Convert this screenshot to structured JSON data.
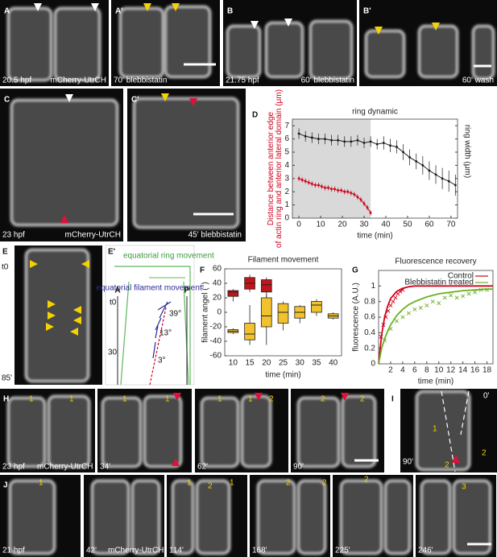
{
  "panels": {
    "A": {
      "label": "A",
      "time": "20.5 hpf",
      "marker": "mCherry-UtrCH"
    },
    "A2": {
      "label": "A'",
      "time": "70' blebbistatin"
    },
    "B": {
      "label": "B",
      "time": "21.75 hpf",
      "condition": "60' blebbistatin"
    },
    "B2": {
      "label": "B'",
      "condition": "60' wash"
    },
    "C": {
      "label": "C",
      "time": "23 hpf",
      "marker": "mCherry-UtrCH"
    },
    "C2": {
      "label": "C'",
      "time": "45' blebbistatin"
    },
    "D": {
      "label": "D"
    },
    "E": {
      "label": "E",
      "start": "t0",
      "end": "85'"
    },
    "E2": {
      "label": "E'",
      "title1": "equatorial ring movement",
      "title2": "equatorial filament movement",
      "anterior": "A",
      "posterior": "P",
      "start": "t0",
      "mid": "30'",
      "angles": [
        "39°",
        "13°",
        "3°"
      ]
    },
    "F": {
      "label": "F"
    },
    "G": {
      "label": "G"
    },
    "H": {
      "label": "H",
      "frames": [
        {
          "time": "23 hpf",
          "marker": "mCherry-UtrCH",
          "rings": [
            "1",
            "1"
          ]
        },
        {
          "time": "34'",
          "rings": [
            "1",
            "1"
          ]
        },
        {
          "time": "62'",
          "rings": [
            "1",
            "1",
            "2"
          ]
        },
        {
          "time": "90'",
          "rings": [
            "2",
            "2"
          ]
        }
      ]
    },
    "I": {
      "label": "I",
      "start": "0'",
      "end": "90'",
      "rings": [
        "1",
        "2",
        "2"
      ]
    },
    "J": {
      "label": "J",
      "frames": [
        {
          "time": "21 hpf",
          "rings": [
            "1"
          ]
        },
        {
          "time": "42'",
          "marker": "mCherry-UtrCH"
        },
        {
          "time": "114'",
          "rings": [
            "1",
            "2",
            "1"
          ]
        },
        {
          "time": "168'",
          "rings": [
            "2",
            "2"
          ]
        },
        {
          "time": "225'",
          "rings": [
            "2"
          ]
        },
        {
          "time": "246'",
          "rings": [
            "3"
          ]
        }
      ]
    }
  },
  "chart_data": [
    {
      "type": "line",
      "title": "ring dynamic",
      "x_label": "time (min)",
      "y_label": "Distance between anterior edge of actin ring and anterior lateral domain (μm)",
      "y_label_color": "#d0021b",
      "y2_label": "ring width (μm)",
      "xlim": [
        -3,
        73
      ],
      "xticks": [
        0,
        10,
        20,
        30,
        40,
        50,
        60,
        70
      ],
      "ylim": [
        0,
        7.5
      ],
      "yticks": [
        0,
        1,
        2,
        3,
        4,
        5,
        6,
        7
      ],
      "shaded_xlim": [
        -3,
        33
      ],
      "shade_color": "#d9d9d9",
      "series": [
        {
          "color": "#1a1a1a",
          "x": [
            0,
            3,
            6,
            9,
            12,
            15,
            18,
            21,
            24,
            27,
            30,
            33,
            36,
            39,
            42,
            45,
            48,
            51,
            54,
            57,
            60,
            63,
            66,
            69,
            72
          ],
          "values": [
            6.4,
            6.2,
            6.1,
            6.0,
            6.0,
            5.9,
            5.9,
            5.8,
            5.8,
            5.9,
            5.7,
            5.8,
            5.6,
            5.7,
            5.5,
            5.4,
            5.0,
            4.6,
            4.3,
            4.0,
            3.6,
            3.3,
            3.0,
            2.8,
            2.5
          ],
          "errors": [
            0.4,
            0.4,
            0.4,
            0.4,
            0.4,
            0.4,
            0.4,
            0.4,
            0.4,
            0.4,
            0.4,
            0.4,
            0.4,
            0.5,
            0.5,
            0.5,
            0.6,
            0.6,
            0.6,
            0.7,
            0.7,
            0.7,
            0.8,
            0.8,
            0.8
          ]
        },
        {
          "color": "#d0021b",
          "x": [
            0,
            1.5,
            3,
            4.5,
            6,
            7.5,
            9,
            10.5,
            12,
            13.5,
            15,
            16.5,
            18,
            19.5,
            21,
            22.5,
            24,
            25.5,
            27,
            28.5,
            30,
            31.5,
            33
          ],
          "values": [
            3.0,
            2.9,
            2.8,
            2.7,
            2.6,
            2.5,
            2.5,
            2.4,
            2.3,
            2.3,
            2.2,
            2.2,
            2.1,
            2.1,
            2.0,
            2.0,
            1.9,
            1.8,
            1.6,
            1.4,
            1.1,
            0.8,
            0.4
          ],
          "errors": [
            0.2,
            0.2,
            0.2,
            0.2,
            0.2,
            0.2,
            0.2,
            0.2,
            0.2,
            0.2,
            0.2,
            0.2,
            0.2,
            0.2,
            0.2,
            0.2,
            0.2,
            0.2,
            0.2,
            0.2,
            0.2,
            0.2,
            0.2
          ]
        }
      ]
    },
    {
      "type": "box",
      "title": "Filament movement",
      "x_label": "time (min)",
      "y_label": "filament angel (°)",
      "categories": [
        "10",
        "15",
        "20",
        "25",
        "30",
        "35",
        "40"
      ],
      "ylim": [
        -60,
        60
      ],
      "yticks": [
        -60,
        -40,
        -20,
        0,
        20,
        40,
        60
      ],
      "series": [
        {
          "color": "#c0151b",
          "boxes": [
            [
              15,
              22,
              28,
              30,
              32
            ],
            [
              28,
              32,
              40,
              48,
              52
            ],
            [
              20,
              28,
              38,
              45,
              48
            ],
            null,
            null,
            null,
            null
          ]
        },
        {
          "color": "#f2c12e",
          "boxes": [
            [
              -30,
              -28,
              -26,
              -24,
              -22
            ],
            [
              -45,
              -38,
              -30,
              -15,
              10
            ],
            [
              -45,
              -20,
              -5,
              20,
              25
            ],
            [
              -25,
              -15,
              0,
              12,
              15
            ],
            [
              -15,
              -8,
              0,
              8,
              10
            ],
            [
              -5,
              0,
              10,
              15,
              18
            ],
            [
              -10,
              -8,
              -5,
              -2,
              0
            ]
          ]
        }
      ]
    },
    {
      "type": "scatter",
      "title": "Fluorescence recovery",
      "x_label": "time (min)",
      "y_label": "fluorescence (A.U.)",
      "xlim": [
        0,
        19
      ],
      "xticks": [
        2,
        4,
        6,
        8,
        10,
        12,
        14,
        16,
        18
      ],
      "ylim": [
        0,
        1.2
      ],
      "yticks": [
        0,
        0.2,
        0.4,
        0.6,
        0.8,
        1
      ],
      "legend": "upper right",
      "fit_x": [
        0,
        0.5,
        1,
        1.5,
        2,
        3,
        4,
        5,
        6,
        8,
        10,
        12,
        14,
        16,
        18,
        19
      ],
      "series": [
        {
          "name": "Control",
          "color": "#d0021b",
          "x": [
            0.4,
            0.8,
            1.2,
            1.6,
            2.0,
            2.4,
            2.8,
            3.2,
            3.6,
            4.0
          ],
          "values": [
            0.35,
            0.5,
            0.6,
            0.68,
            0.75,
            0.8,
            0.85,
            0.9,
            0.93,
            0.95
          ],
          "fit": [
            0,
            0.37,
            0.6,
            0.74,
            0.84,
            0.93,
            0.97,
            0.99,
            1,
            1,
            1,
            1,
            1,
            1,
            1,
            1
          ]
        },
        {
          "name": "Blebbistatin treated",
          "color": "#6ab023",
          "x": [
            1,
            2,
            3,
            4,
            5,
            6,
            7,
            8,
            9,
            10,
            11,
            12,
            13,
            14,
            15,
            16,
            17,
            18
          ],
          "values": [
            0.3,
            0.45,
            0.55,
            0.6,
            0.65,
            0.7,
            0.72,
            0.75,
            0.8,
            0.78,
            0.85,
            0.88,
            0.85,
            0.87,
            0.9,
            0.92,
            0.95,
            0.95
          ],
          "fit": [
            0,
            0.2,
            0.32,
            0.42,
            0.5,
            0.62,
            0.7,
            0.76,
            0.8,
            0.86,
            0.9,
            0.92,
            0.94,
            0.95,
            0.96,
            0.96
          ]
        }
      ]
    }
  ]
}
